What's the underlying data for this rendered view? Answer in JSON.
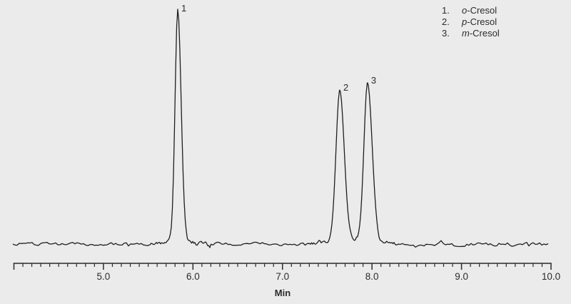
{
  "figure": {
    "background_color": "#ebebeb",
    "trace_color": "#1f1f1f",
    "axis_color": "#2b2b2b",
    "text_color": "#2b2b2b"
  },
  "chart_data": {
    "type": "line",
    "title": "",
    "xlabel": "Min",
    "ylabel": "",
    "x_range": [
      4.0,
      10.0
    ],
    "x_ticks": [
      5.0,
      6.0,
      7.0,
      8.0,
      9.0,
      10.0
    ],
    "x_tick_labels": [
      "5.0",
      "6.0",
      "7.0",
      "8.0",
      "9.0",
      "10.0"
    ],
    "minor_tick_interval": 0.1,
    "grid": false,
    "legend_position": "top-right",
    "baseline_signal": 0.0,
    "noise_amplitude_rel": 0.012,
    "peaks": [
      {
        "label": "1",
        "compound": "o-Cresol",
        "retention_min": 5.83,
        "rel_height": 1.0,
        "sigma_left_min": 0.03,
        "sigma_right_min": 0.038
      },
      {
        "label": "2",
        "compound": "p-Cresol",
        "retention_min": 7.64,
        "rel_height": 0.655,
        "sigma_left_min": 0.042,
        "sigma_right_min": 0.05
      },
      {
        "label": "3",
        "compound": "m-Cresol",
        "retention_min": 7.95,
        "rel_height": 0.685,
        "sigma_left_min": 0.04,
        "sigma_right_min": 0.052
      }
    ]
  },
  "legend": {
    "items": [
      {
        "num": "1.",
        "prefix": "o",
        "suffix": "-Cresol"
      },
      {
        "num": "2.",
        "prefix": "p",
        "suffix": "-Cresol"
      },
      {
        "num": "3.",
        "prefix": "m",
        "suffix": "-Cresol"
      }
    ]
  }
}
